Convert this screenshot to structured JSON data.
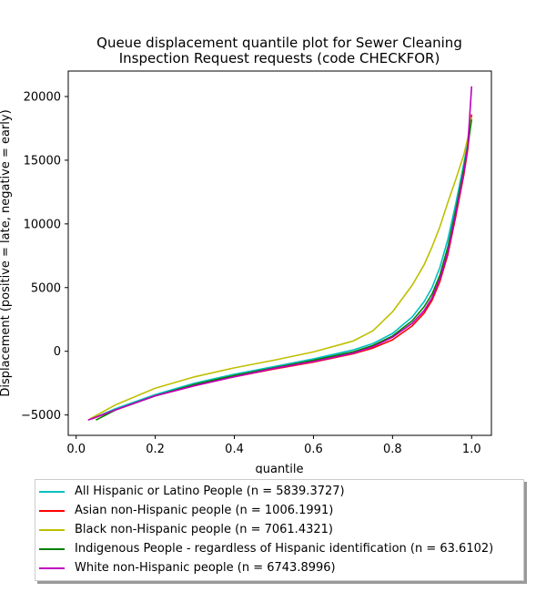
{
  "chart_data": {
    "type": "line",
    "title": "Queue displacement quantile plot for Sewer Cleaning\nInspection Request  requests (code CHECKFOR)",
    "xlabel": "quantile",
    "ylabel": "Displacement (positive = late, negative = early)",
    "xlim": [
      -0.02,
      1.05
    ],
    "ylim": [
      -6600,
      22000
    ],
    "xticks": [
      0.0,
      0.2,
      0.4,
      0.6,
      0.8,
      1.0
    ],
    "xtick_labels": [
      "0.0",
      "0.2",
      "0.4",
      "0.6",
      "0.8",
      "1.0"
    ],
    "yticks": [
      -5000,
      0,
      5000,
      10000,
      15000,
      20000
    ],
    "ytick_labels": [
      "−5000",
      "0",
      "5000",
      "10000",
      "15000",
      "20000"
    ],
    "grid": false,
    "legend_position": "below",
    "series": [
      {
        "name": "All Hispanic or Latino People (n = 5839.3727)",
        "color": "#00bfbf",
        "x": [
          0.04,
          0.1,
          0.2,
          0.3,
          0.4,
          0.5,
          0.6,
          0.7,
          0.75,
          0.8,
          0.85,
          0.88,
          0.9,
          0.92,
          0.94,
          0.96,
          0.98,
          0.99,
          1.0
        ],
        "y": [
          -5300,
          -4500,
          -3400,
          -2500,
          -1800,
          -1200,
          -600,
          100,
          600,
          1400,
          2700,
          3900,
          5000,
          6600,
          8800,
          11600,
          14700,
          16300,
          18500
        ]
      },
      {
        "name": "Asian non-Hispanic people (n = 1006.1991)",
        "color": "#ff0000",
        "x": [
          0.04,
          0.1,
          0.2,
          0.3,
          0.4,
          0.5,
          0.6,
          0.7,
          0.75,
          0.8,
          0.85,
          0.88,
          0.9,
          0.92,
          0.94,
          0.96,
          0.98,
          0.99,
          1.0
        ],
        "y": [
          -5300,
          -4600,
          -3500,
          -2700,
          -2000,
          -1400,
          -850,
          -200,
          250,
          900,
          2000,
          3000,
          4000,
          5500,
          7600,
          10600,
          13800,
          15800,
          18600
        ]
      },
      {
        "name": "Black non-Hispanic people (n = 7061.4321)",
        "color": "#bfbf00",
        "x": [
          0.035,
          0.1,
          0.2,
          0.3,
          0.4,
          0.5,
          0.6,
          0.7,
          0.75,
          0.8,
          0.85,
          0.88,
          0.9,
          0.92,
          0.94,
          0.96,
          0.98,
          0.99,
          1.0
        ],
        "y": [
          -5300,
          -4200,
          -2900,
          -2000,
          -1300,
          -700,
          -50,
          800,
          1600,
          3100,
          5200,
          6800,
          8200,
          9800,
          11700,
          13500,
          15400,
          16700,
          18400
        ]
      },
      {
        "name": "Indigenous People - regardless of Hispanic identification (n = 63.6102)",
        "color": "#008000",
        "x": [
          0.05,
          0.1,
          0.2,
          0.3,
          0.4,
          0.5,
          0.6,
          0.7,
          0.75,
          0.8,
          0.85,
          0.88,
          0.9,
          0.92,
          0.94,
          0.96,
          0.98,
          0.99,
          1.0
        ],
        "y": [
          -5400,
          -4600,
          -3500,
          -2600,
          -1900,
          -1300,
          -700,
          -50,
          450,
          1200,
          2400,
          3500,
          4500,
          6000,
          8200,
          11100,
          14300,
          16100,
          18200
        ]
      },
      {
        "name": "White non-Hispanic people (n = 6743.8996)",
        "color": "#bf00bf",
        "x": [
          0.03,
          0.1,
          0.2,
          0.3,
          0.4,
          0.5,
          0.6,
          0.7,
          0.75,
          0.8,
          0.85,
          0.88,
          0.9,
          0.92,
          0.94,
          0.96,
          0.98,
          0.99,
          1.0
        ],
        "y": [
          -5400,
          -4600,
          -3500,
          -2700,
          -2000,
          -1350,
          -800,
          -150,
          350,
          1100,
          2200,
          3200,
          4200,
          5700,
          7800,
          10800,
          14000,
          16000,
          20800
        ]
      }
    ]
  }
}
